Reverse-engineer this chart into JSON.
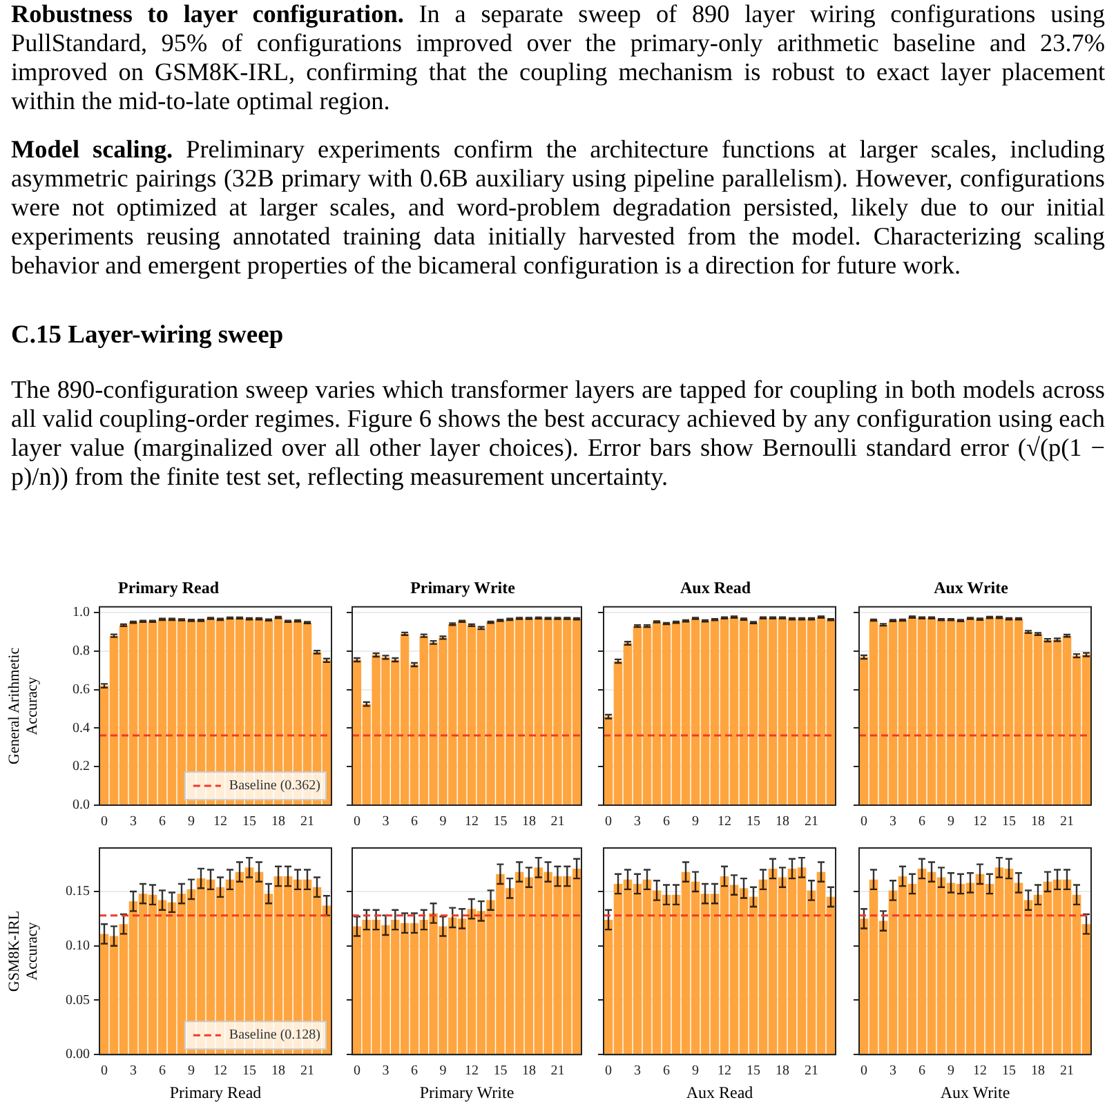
{
  "chart_data": [
    {
      "type": "bar",
      "title": "Primary Read",
      "ylabel": "General Arithmetic Accuracy",
      "annotations": [
        "Robustness to layer configuration. In a separate sweep of 890 layer wiring configurations using PullStandard, 95% of configurations improved over the primary-only arithmetic baseline and 23.7% improved on GSM8K-IRL, confirming that the coupling mechanism is robust to exact layer placement within the mid-to-late optimal region.",
        "Model scaling. Preliminary experiments confirm the architecture functions at larger scales, including asymmetric pairings (32B primary with 0.6B auxiliary using pipeline parallelism). However, configurations were not optimized at larger scales, and word-problem degradation persisted, likely due to our initial experiments reusing annotated training data initially harvested from the model. Characterizing scaling behavior and emergent properties of the bicameral configuration is a direction for future work.",
        "C.15 Layer-wiring sweep",
        "The 890-configuration sweep varies which transformer layers are tapped for coupling in both models across all valid coupling-order regimes. Figure 6 shows the best accuracy achieved by any configuration using each layer value (marginalized over all other layer choices). Error bars show Bernoulli standard error (√(p(1 − p)/n)) from the finite test set, reflecting measurement uncertainty."
      ],
      "categories": [
        "0",
        null,
        null,
        "3",
        null,
        null,
        "6",
        null,
        null,
        "9",
        null,
        null,
        "12",
        null,
        null,
        "15",
        null,
        null,
        "18",
        null,
        null,
        "21",
        null,
        null
      ],
      "values": [
        0.62,
        0.88,
        0.935,
        0.95,
        0.955,
        0.955,
        0.965,
        0.965,
        0.963,
        0.96,
        0.96,
        0.97,
        0.965,
        0.972,
        0.972,
        0.968,
        0.968,
        0.962,
        0.975,
        0.955,
        0.957,
        0.948,
        0.795,
        0.752
      ],
      "errors": [
        0.01,
        0.007,
        0.005,
        0.004,
        0.004,
        0.004,
        0.004,
        0.004,
        0.004,
        0.004,
        0.004,
        0.004,
        0.004,
        0.004,
        0.004,
        0.004,
        0.004,
        0.004,
        0.004,
        0.004,
        0.004,
        0.004,
        0.008,
        0.009
      ],
      "color": "#ffa53f",
      "ylim": [
        0,
        1.03
      ],
      "yticks": [
        {
          "value": 0,
          "label": "0.0"
        },
        {
          "value": 0.2,
          "label": "0.2"
        },
        {
          "value": 0.4,
          "label": "0.4"
        },
        {
          "value": 0.6,
          "label": "0.6"
        },
        {
          "value": 0.8,
          "label": "0.8"
        },
        {
          "value": 1,
          "label": "1.0"
        }
      ],
      "grid": "y",
      "legend": "bottom right",
      "ref_lines": [
        {
          "axis": "y",
          "value": 0.362,
          "label": "Baseline (0.362)",
          "color": "#f03a2a",
          "line_style": "dashed"
        }
      ]
    },
    {
      "type": "bar",
      "title": "Primary Write",
      "tick_labels": "x",
      "categories": [
        "0",
        null,
        null,
        "3",
        null,
        null,
        "6",
        null,
        null,
        "9",
        null,
        null,
        "12",
        null,
        null,
        "15",
        null,
        null,
        "18",
        null,
        null,
        "21",
        null,
        null
      ],
      "values": [
        0.755,
        0.525,
        0.78,
        0.768,
        0.755,
        0.89,
        0.73,
        0.88,
        0.845,
        0.87,
        0.94,
        0.955,
        0.935,
        0.92,
        0.95,
        0.96,
        0.965,
        0.97,
        0.97,
        0.972,
        0.97,
        0.97,
        0.97,
        0.968
      ],
      "errors": [
        0.009,
        0.01,
        0.009,
        0.009,
        0.009,
        0.007,
        0.009,
        0.007,
        0.008,
        0.007,
        0.005,
        0.004,
        0.005,
        0.006,
        0.004,
        0.004,
        0.004,
        0.004,
        0.004,
        0.004,
        0.004,
        0.004,
        0.004,
        0.004
      ],
      "color": "#ffa53f",
      "ylim": [
        0,
        1.03
      ],
      "yticks": [
        {
          "value": 0,
          "label": null
        },
        {
          "value": 0.2,
          "label": null
        },
        {
          "value": 0.4,
          "label": null
        },
        {
          "value": 0.6,
          "label": null
        },
        {
          "value": 0.8,
          "label": null
        },
        {
          "value": 1,
          "label": null
        }
      ],
      "grid": "y",
      "ref_lines": [
        {
          "axis": "y",
          "value": 0.362,
          "color": "#f03a2a",
          "line_style": "dashed"
        }
      ]
    },
    {
      "type": "bar",
      "title": "Aux Read",
      "tick_labels": "x",
      "categories": [
        "0",
        null,
        null,
        "3",
        null,
        null,
        "6",
        null,
        null,
        "9",
        null,
        null,
        "12",
        null,
        null,
        "15",
        null,
        null,
        "18",
        null,
        null,
        "21",
        null,
        null
      ],
      "values": [
        0.46,
        0.748,
        0.841,
        0.93,
        0.93,
        0.952,
        0.943,
        0.95,
        0.957,
        0.97,
        0.957,
        0.964,
        0.973,
        0.977,
        0.966,
        0.948,
        0.973,
        0.973,
        0.973,
        0.968,
        0.968,
        0.968,
        0.977,
        0.964
      ],
      "errors": [
        0.01,
        0.009,
        0.008,
        0.005,
        0.005,
        0.004,
        0.004,
        0.004,
        0.004,
        0.004,
        0.004,
        0.004,
        0.004,
        0.004,
        0.004,
        0.004,
        0.004,
        0.004,
        0.004,
        0.004,
        0.004,
        0.004,
        0.004,
        0.004
      ],
      "color": "#ffa53f",
      "ylim": [
        0,
        1.03
      ],
      "yticks": [
        {
          "value": 0,
          "label": null
        },
        {
          "value": 0.2,
          "label": null
        },
        {
          "value": 0.4,
          "label": null
        },
        {
          "value": 0.6,
          "label": null
        },
        {
          "value": 0.8,
          "label": null
        },
        {
          "value": 1,
          "label": null
        }
      ],
      "grid": "y",
      "ref_lines": [
        {
          "axis": "y",
          "value": 0.362,
          "color": "#f03a2a",
          "line_style": "dashed"
        }
      ]
    },
    {
      "type": "bar",
      "title": "Aux Write",
      "tick_labels": "x",
      "categories": [
        "0",
        null,
        null,
        "3",
        null,
        null,
        "6",
        null,
        null,
        "9",
        null,
        null,
        "12",
        null,
        null,
        "15",
        null,
        null,
        "18",
        null,
        null,
        "21",
        null,
        null
      ],
      "values": [
        0.769,
        0.961,
        0.937,
        0.959,
        0.961,
        0.977,
        0.973,
        0.973,
        0.964,
        0.964,
        0.959,
        0.97,
        0.966,
        0.975,
        0.975,
        0.968,
        0.968,
        0.9,
        0.889,
        0.857,
        0.859,
        0.88,
        0.776,
        0.782
      ],
      "errors": [
        0.009,
        0.004,
        0.005,
        0.004,
        0.004,
        0.004,
        0.004,
        0.004,
        0.004,
        0.004,
        0.004,
        0.004,
        0.004,
        0.004,
        0.004,
        0.004,
        0.004,
        0.006,
        0.006,
        0.007,
        0.007,
        0.006,
        0.009,
        0.009
      ],
      "color": "#ffa53f",
      "ylim": [
        0,
        1.03
      ],
      "yticks": [
        {
          "value": 0,
          "label": null
        },
        {
          "value": 0.2,
          "label": null
        },
        {
          "value": 0.4,
          "label": null
        },
        {
          "value": 0.6,
          "label": null
        },
        {
          "value": 0.8,
          "label": null
        },
        {
          "value": 1,
          "label": null
        }
      ],
      "grid": "y",
      "ref_lines": [
        {
          "axis": "y",
          "value": 0.362,
          "color": "#f03a2a",
          "line_style": "dashed"
        }
      ]
    },
    {
      "type": "bar",
      "xlabel": "Primary Read",
      "ylabel": "GSM8K-IRL Accuracy",
      "categories": [
        "0",
        null,
        null,
        "3",
        null,
        null,
        "6",
        null,
        null,
        "9",
        null,
        null,
        "12",
        null,
        null,
        "15",
        null,
        null,
        "18",
        null,
        null,
        "21",
        null,
        null
      ],
      "values": [
        0.111,
        0.109,
        0.12,
        0.141,
        0.148,
        0.147,
        0.142,
        0.14,
        0.148,
        0.152,
        0.162,
        0.161,
        0.154,
        0.161,
        0.168,
        0.172,
        0.168,
        0.148,
        0.164,
        0.164,
        0.161,
        0.161,
        0.154,
        0.137
      ],
      "errors": [
        0.009,
        0.009,
        0.009,
        0.009,
        0.009,
        0.009,
        0.009,
        0.009,
        0.009,
        0.009,
        0.009,
        0.009,
        0.009,
        0.009,
        0.009,
        0.009,
        0.009,
        0.009,
        0.009,
        0.009,
        0.009,
        0.009,
        0.009,
        0.009
      ],
      "color": "#ffa53f",
      "ylim": [
        0,
        0.19
      ],
      "yticks": [
        {
          "value": 0,
          "label": "0.00"
        },
        {
          "value": 0.05,
          "label": "0.05"
        },
        {
          "value": 0.1,
          "label": "0.10"
        },
        {
          "value": 0.15,
          "label": "0.15"
        }
      ],
      "grid": "y",
      "legend": "bottom right",
      "ref_lines": [
        {
          "axis": "y",
          "value": 0.128,
          "label": "Baseline (0.128)",
          "color": "#f03a2a",
          "line_style": "dashed"
        }
      ]
    },
    {
      "type": "bar",
      "xlabel": "Primary Write",
      "tick_labels": "x",
      "categories": [
        "0",
        null,
        null,
        "3",
        null,
        null,
        "6",
        null,
        null,
        "9",
        null,
        null,
        "12",
        null,
        null,
        "15",
        null,
        null,
        "18",
        null,
        null,
        "21",
        null,
        null
      ],
      "values": [
        0.118,
        0.124,
        0.124,
        0.119,
        0.124,
        0.121,
        0.121,
        0.124,
        0.13,
        0.118,
        0.126,
        0.125,
        0.134,
        0.132,
        0.142,
        0.166,
        0.153,
        0.168,
        0.163,
        0.172,
        0.168,
        0.164,
        0.164,
        0.171
      ],
      "errors": [
        0.009,
        0.009,
        0.009,
        0.009,
        0.009,
        0.009,
        0.009,
        0.009,
        0.009,
        0.009,
        0.009,
        0.009,
        0.009,
        0.009,
        0.009,
        0.009,
        0.009,
        0.009,
        0.009,
        0.009,
        0.009,
        0.009,
        0.009,
        0.009
      ],
      "color": "#ffa53f",
      "ylim": [
        0,
        0.19
      ],
      "yticks": [
        {
          "value": 0,
          "label": null
        },
        {
          "value": 0.05,
          "label": null
        },
        {
          "value": 0.1,
          "label": null
        },
        {
          "value": 0.15,
          "label": null
        }
      ],
      "grid": "y",
      "ref_lines": [
        {
          "axis": "y",
          "value": 0.128,
          "color": "#f03a2a",
          "line_style": "dashed"
        }
      ]
    },
    {
      "type": "bar",
      "xlabel": "Aux Read",
      "tick_labels": "x",
      "categories": [
        "0",
        null,
        null,
        "3",
        null,
        null,
        "6",
        null,
        null,
        "9",
        null,
        null,
        "12",
        null,
        null,
        "15",
        null,
        null,
        "18",
        null,
        null,
        "21",
        null,
        null
      ],
      "values": [
        0.124,
        0.157,
        0.161,
        0.157,
        0.161,
        0.151,
        0.147,
        0.147,
        0.168,
        0.159,
        0.148,
        0.148,
        0.164,
        0.156,
        0.153,
        0.145,
        0.161,
        0.171,
        0.163,
        0.171,
        0.172,
        0.151,
        0.168,
        0.145
      ],
      "errors": [
        0.009,
        0.009,
        0.009,
        0.009,
        0.009,
        0.009,
        0.009,
        0.009,
        0.009,
        0.009,
        0.009,
        0.009,
        0.009,
        0.009,
        0.009,
        0.009,
        0.009,
        0.009,
        0.009,
        0.009,
        0.009,
        0.009,
        0.009,
        0.009
      ],
      "color": "#ffa53f",
      "ylim": [
        0,
        0.19
      ],
      "yticks": [
        {
          "value": 0,
          "label": null
        },
        {
          "value": 0.05,
          "label": null
        },
        {
          "value": 0.1,
          "label": null
        },
        {
          "value": 0.15,
          "label": null
        }
      ],
      "grid": "y",
      "ref_lines": [
        {
          "axis": "y",
          "value": 0.128,
          "color": "#f03a2a",
          "line_style": "dashed"
        }
      ]
    },
    {
      "type": "bar",
      "xlabel": "Aux Write",
      "tick_labels": "x",
      "categories": [
        "0",
        null,
        null,
        "3",
        null,
        null,
        "6",
        null,
        null,
        "9",
        null,
        null,
        "12",
        null,
        null,
        "15",
        null,
        null,
        "18",
        null,
        null,
        "21",
        null,
        null
      ],
      "values": [
        0.125,
        0.161,
        0.123,
        0.151,
        0.164,
        0.157,
        0.171,
        0.168,
        0.163,
        0.158,
        0.157,
        0.158,
        0.166,
        0.157,
        0.172,
        0.171,
        0.158,
        0.142,
        0.147,
        0.159,
        0.161,
        0.161,
        0.147,
        0.12
      ],
      "errors": [
        0.009,
        0.009,
        0.009,
        0.009,
        0.009,
        0.009,
        0.009,
        0.009,
        0.009,
        0.009,
        0.009,
        0.009,
        0.009,
        0.009,
        0.009,
        0.009,
        0.009,
        0.009,
        0.009,
        0.009,
        0.009,
        0.009,
        0.009,
        0.009
      ],
      "color": "#ffa53f",
      "ylim": [
        0,
        0.19
      ],
      "yticks": [
        {
          "value": 0,
          "label": null
        },
        {
          "value": 0.05,
          "label": null
        },
        {
          "value": 0.1,
          "label": null
        },
        {
          "value": 0.15,
          "label": null
        }
      ],
      "grid": "y",
      "ref_lines": [
        {
          "axis": "y",
          "value": 0.128,
          "color": "#f03a2a",
          "line_style": "dashed"
        }
      ]
    }
  ]
}
